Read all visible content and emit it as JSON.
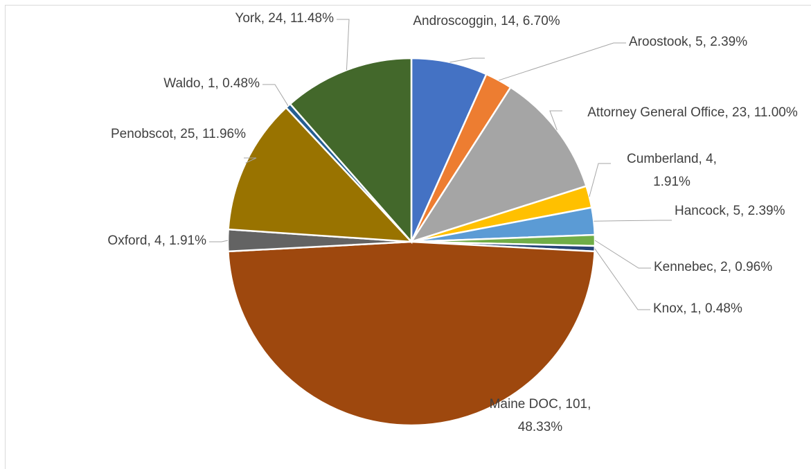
{
  "chart_data": {
    "type": "pie",
    "categories": [
      "Androscoggin",
      "Aroostook",
      "Attorney General Office",
      "Cumberland",
      "Hancock",
      "Kennebec",
      "Knox",
      "Maine DOC",
      "Oxford",
      "Penobscot",
      "Waldo",
      "York"
    ],
    "values": [
      14,
      5,
      23,
      4,
      5,
      2,
      1,
      101,
      4,
      25,
      1,
      24
    ],
    "value_labels": [
      "Androscoggin, 14, 6.70%",
      "Aroostook, 5, 2.39%",
      "Attorney General Office, 23, 11.00%",
      "Cumberland, 4, 1.91%",
      "Hancock, 5, 2.39%",
      "Kennebec, 2, 0.96%",
      "Knox, 1, 0.48%",
      "Maine DOC, 101, 48.33%",
      "Oxford, 4, 1.91%",
      "Penobscot, 25, 11.96%",
      "Waldo, 1, 0.48%",
      "York, 24, 11.48%"
    ],
    "colors": [
      "#4472c4",
      "#ed7d31",
      "#a5a5a5",
      "#ffc000",
      "#5b9bd5",
      "#70ad47",
      "#264478",
      "#9e480e",
      "#636363",
      "#997300",
      "#255e91",
      "#43682b"
    ]
  }
}
